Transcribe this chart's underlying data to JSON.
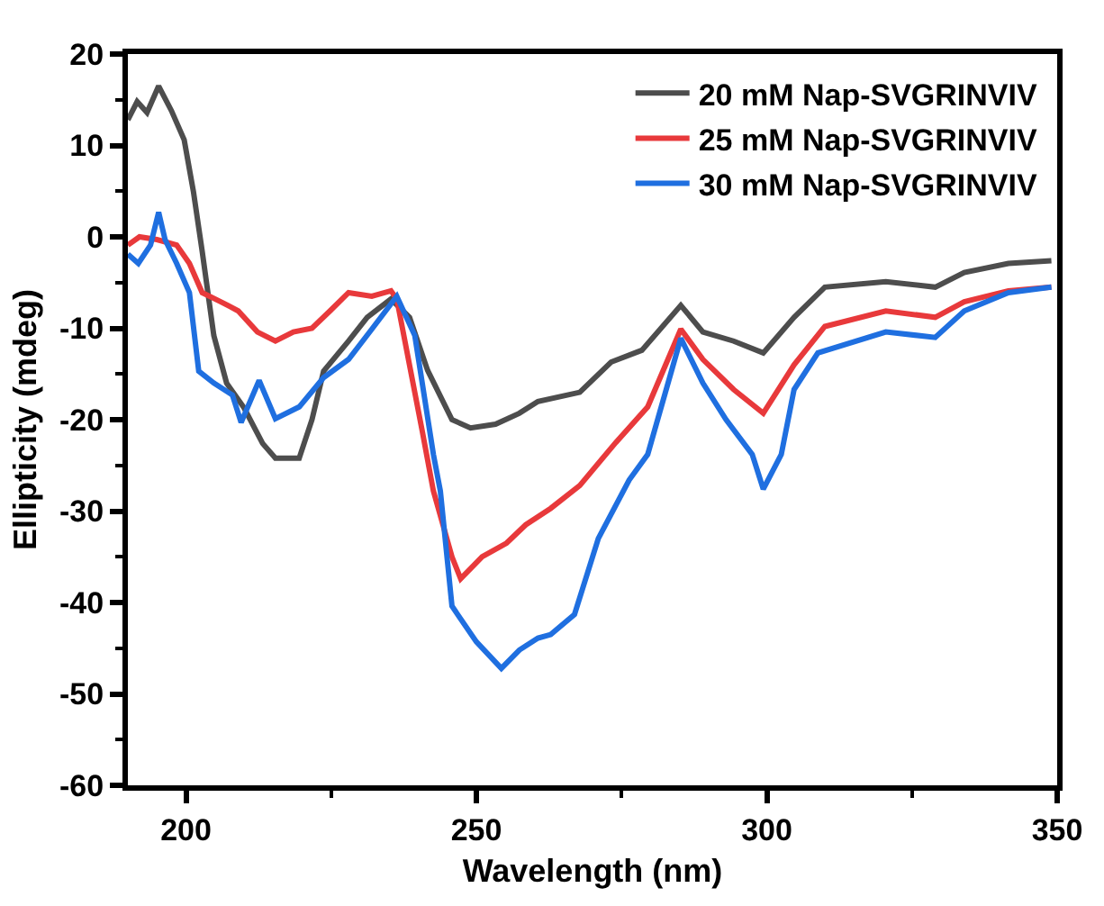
{
  "chart_data": {
    "type": "line",
    "xlabel": "Wavelength (nm)",
    "ylabel": "Ellipticity (mdeg)",
    "xlim": [
      190,
      350
    ],
    "xticks": [
      200,
      250,
      300,
      350
    ],
    "ylim": [
      -60,
      20
    ],
    "yticks": [
      -60,
      -50,
      -40,
      -30,
      -20,
      -10,
      0,
      10,
      20
    ],
    "grid": false,
    "legend": "top right",
    "marker": "none",
    "line_style": "solid",
    "series": [
      {
        "name": "20 mM Nap-SVGRINVIV",
        "color": "#4d4d4d",
        "x": [
          190,
          191.6,
          193.3,
          195.3,
          197.5,
          199.7,
          201.3,
          202.8,
          204.8,
          207,
          210,
          213.2,
          215.4,
          219.5,
          221.7,
          223.7,
          228,
          231.2,
          235.3,
          238.5,
          241.6,
          245.8,
          249,
          253.3,
          257.4,
          260.6,
          267.8,
          273.2,
          278.5,
          285.2,
          289,
          294.3,
          299.4,
          304.7,
          310,
          320.5,
          329,
          334,
          341.6,
          349
        ],
        "values": [
          12.8,
          14.8,
          13.6,
          16.5,
          13.8,
          10.6,
          4.9,
          -1.6,
          -10.8,
          -16,
          -18.7,
          -22.6,
          -24.2,
          -24.2,
          -20,
          -14.7,
          -11.4,
          -8.8,
          -6.8,
          -8.8,
          -14.6,
          -20,
          -20.9,
          -20.5,
          -19.3,
          -18,
          -17,
          -13.7,
          -12.4,
          -7.5,
          -10.4,
          -11.4,
          -12.7,
          -8.8,
          -5.5,
          -4.9,
          -5.5,
          -3.9,
          -2.9,
          -2.6
        ]
      },
      {
        "name": "25 mM Nap-SVGRINVIV",
        "color": "#e8393b",
        "x": [
          190,
          192,
          195,
          198.4,
          200.6,
          202.8,
          206,
          209,
          212.3,
          215.4,
          218.5,
          221.7,
          224.8,
          228,
          232,
          235.3,
          236.3,
          240.7,
          242.6,
          245.8,
          247.3,
          251,
          255.2,
          258.5,
          262.8,
          267.8,
          274,
          279.5,
          285.2,
          289,
          294.3,
          299.4,
          304.7,
          310,
          320.5,
          329,
          334,
          341.6,
          349
        ],
        "values": [
          -0.9,
          0,
          -0.3,
          -0.9,
          -2.9,
          -6.1,
          -7.1,
          -8.1,
          -10.4,
          -11.4,
          -10.4,
          -10,
          -8.1,
          -6.1,
          -6.5,
          -5.9,
          -6.8,
          -21.3,
          -27.8,
          -35,
          -37.4,
          -35,
          -33.5,
          -31.5,
          -29.7,
          -27.2,
          -22.5,
          -18.6,
          -10.1,
          -13.4,
          -16.7,
          -19.3,
          -14,
          -9.8,
          -8.1,
          -8.8,
          -7.1,
          -5.9,
          -5.5
        ]
      },
      {
        "name": "30 mM Nap-SVGRINVIV",
        "color": "#1f6fe0",
        "x": [
          190,
          191.8,
          193.9,
          195.3,
          196.4,
          198.4,
          200.6,
          202.2,
          204.8,
          208,
          209.5,
          212.6,
          215.4,
          219.5,
          223.7,
          228,
          232,
          236.3,
          239.4,
          242.6,
          243.8,
          245.8,
          250,
          254.3,
          257.4,
          260.6,
          262.8,
          266.9,
          271,
          276.3,
          279.5,
          285.2,
          289,
          293,
          297.5,
          299.4,
          302.5,
          304.7,
          308.8,
          320.5,
          329,
          334,
          341.6,
          349
        ],
        "values": [
          -1.9,
          -2.9,
          -0.9,
          2.7,
          -0.3,
          -2.9,
          -6.1,
          -14.7,
          -16,
          -17.3,
          -20.3,
          -15.7,
          -19.9,
          -18.6,
          -15.4,
          -13.4,
          -10.1,
          -6.5,
          -10.8,
          -23.8,
          -27.8,
          -40.4,
          -44.3,
          -47.2,
          -45.2,
          -43.9,
          -43.5,
          -41.3,
          -33,
          -26.6,
          -23.8,
          -11.1,
          -16,
          -20,
          -23.8,
          -27.6,
          -23.8,
          -16.7,
          -12.7,
          -10.4,
          -11,
          -8.1,
          -6.1,
          -5.5
        ]
      }
    ]
  }
}
